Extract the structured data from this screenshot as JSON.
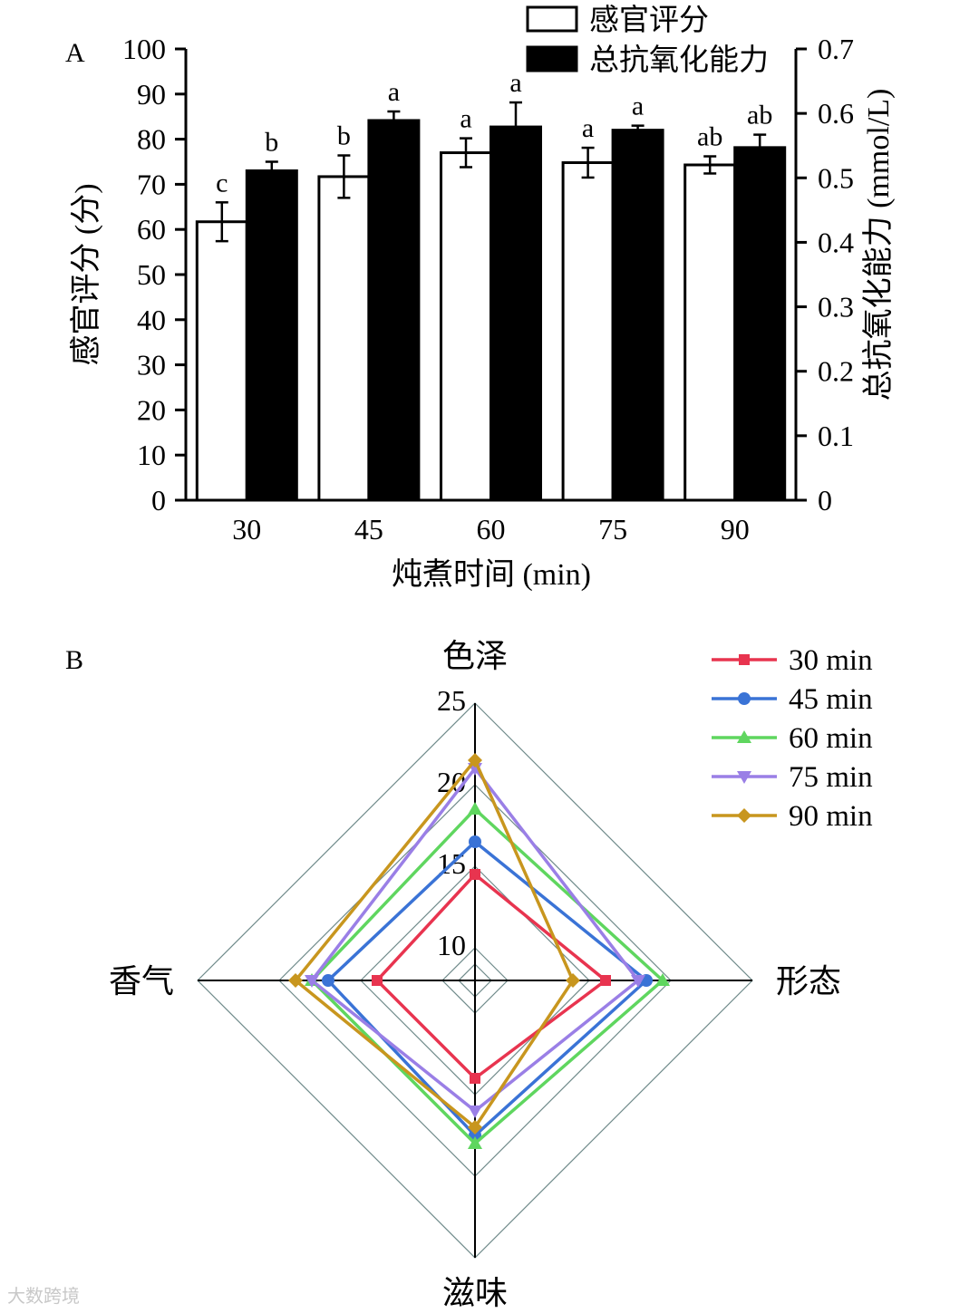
{
  "chart_data": [
    {
      "panel_label": "A",
      "type": "bar",
      "categories": [
        "30",
        "45",
        "60",
        "75",
        "90"
      ],
      "xlabel": "炖煮时间 (min)",
      "ylabel": "感官评分 (分)",
      "y2label": "总抗氧化能力 (mmol/L)",
      "ylim": [
        0,
        100
      ],
      "y2lim": [
        0,
        0.7
      ],
      "yticks": [
        "0",
        "10",
        "20",
        "30",
        "40",
        "50",
        "60",
        "70",
        "80",
        "90",
        "100"
      ],
      "y2ticks": [
        "0",
        "0.1",
        "0.2",
        "0.3",
        "0.4",
        "0.5",
        "0.6",
        "0.7"
      ],
      "legend_position": "top-right",
      "series": [
        {
          "name": "感官评分",
          "axis": "left",
          "fill": "#ffffff",
          "values": [
            61.7,
            71.7,
            77.0,
            74.8,
            74.3
          ],
          "errors": [
            4.3,
            4.7,
            3.2,
            3.3,
            1.9
          ],
          "letters": [
            "c",
            "b",
            "a",
            "a",
            "ab"
          ]
        },
        {
          "name": "总抗氧化能力",
          "axis": "right",
          "fill": "#000000",
          "values": [
            0.511,
            0.589,
            0.579,
            0.574,
            0.547
          ],
          "errors": [
            0.014,
            0.014,
            0.038,
            0.007,
            0.02
          ],
          "letters": [
            "b",
            "a",
            "a",
            "a",
            "ab"
          ]
        }
      ]
    },
    {
      "panel_label": "B",
      "type": "radar",
      "axes": [
        "色泽",
        "形态",
        "滋味",
        "香气"
      ],
      "rlim": [
        8,
        25
      ],
      "rticks": [
        "10",
        "15",
        "20",
        "25"
      ],
      "legend_position": "top-right",
      "series": [
        {
          "name": "30 min",
          "color": "#e8344f",
          "marker": "square",
          "values": [
            14.5,
            16.0,
            14.0,
            14.0
          ]
        },
        {
          "name": "45 min",
          "color": "#3a73d6",
          "marker": "circle",
          "values": [
            16.5,
            18.5,
            17.5,
            17.0
          ]
        },
        {
          "name": "60 min",
          "color": "#5fd65f",
          "marker": "triangle-up",
          "values": [
            18.5,
            19.5,
            18.0,
            18.0
          ]
        },
        {
          "name": "75 min",
          "color": "#9a7fe6",
          "marker": "triangle-down",
          "values": [
            21.0,
            18.0,
            16.0,
            18.0
          ]
        },
        {
          "name": "90 min",
          "color": "#c8961e",
          "marker": "diamond",
          "values": [
            21.5,
            14.0,
            17.0,
            19.0
          ]
        }
      ]
    }
  ],
  "watermark": "大数跨境"
}
